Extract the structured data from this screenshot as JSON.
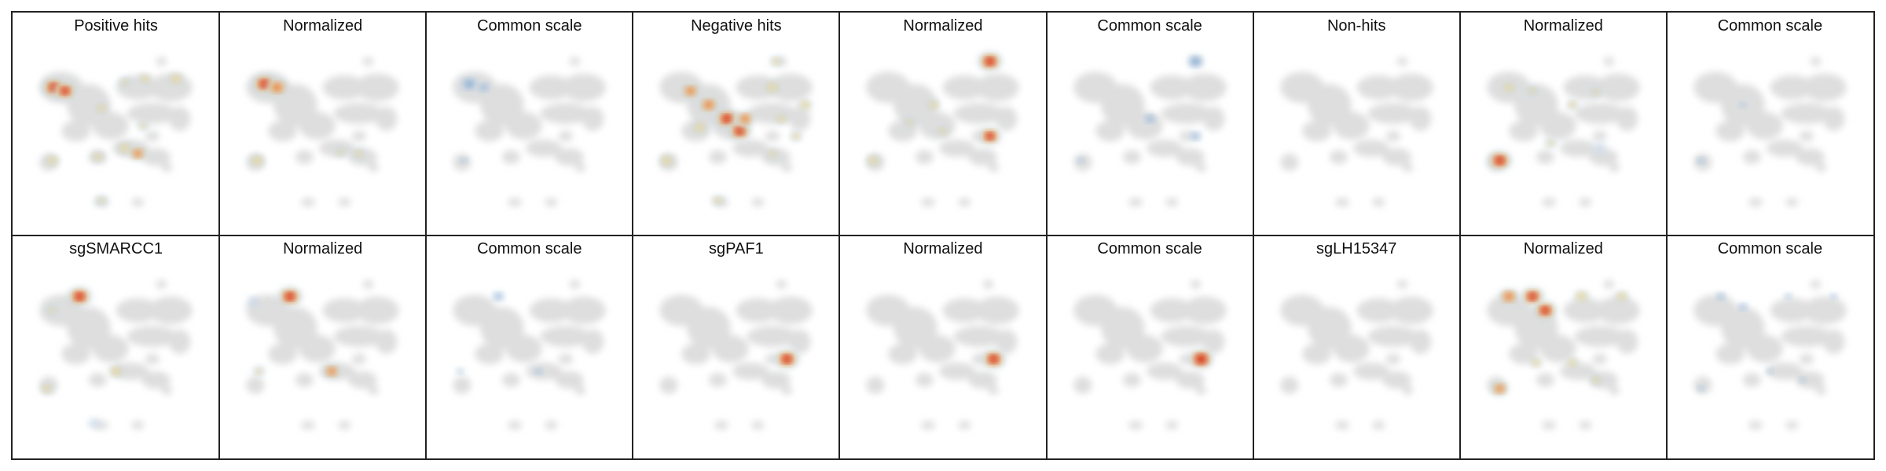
{
  "colors": {
    "background_cells": "#dedede",
    "low_density": "#c5d6e6",
    "mid_density": "#f3d98a",
    "high_density": "#e8622a",
    "peak_density": "#c8171d",
    "common_scale": "#5b8fc6"
  },
  "panels": [
    {
      "title": "Positive hits",
      "mode": "density",
      "spots": [
        [
          0.16,
          0.2,
          1.0
        ],
        [
          0.22,
          0.22,
          0.9
        ],
        [
          0.42,
          0.32,
          0.5
        ],
        [
          0.55,
          0.17,
          0.4
        ],
        [
          0.66,
          0.15,
          0.5
        ],
        [
          0.83,
          0.15,
          0.6
        ],
        [
          0.55,
          0.55,
          0.6
        ],
        [
          0.62,
          0.58,
          0.7
        ],
        [
          0.15,
          0.62,
          0.55
        ],
        [
          0.4,
          0.6,
          0.5
        ],
        [
          0.65,
          0.42,
          0.4
        ],
        [
          0.42,
          0.85,
          0.4
        ]
      ]
    },
    {
      "title": "Normalized",
      "mode": "density",
      "spots": [
        [
          0.18,
          0.18,
          1.0
        ],
        [
          0.25,
          0.2,
          0.85
        ],
        [
          0.6,
          0.57,
          0.4
        ],
        [
          0.14,
          0.62,
          0.6
        ],
        [
          0.7,
          0.58,
          0.45
        ]
      ]
    },
    {
      "title": "Common scale",
      "mode": "common",
      "spots": [
        [
          0.17,
          0.18,
          0.8
        ],
        [
          0.25,
          0.2,
          0.6
        ],
        [
          0.14,
          0.62,
          0.4
        ]
      ]
    },
    {
      "title": "Negative hits",
      "mode": "density",
      "spots": [
        [
          0.25,
          0.22,
          0.75
        ],
        [
          0.35,
          0.3,
          0.8
        ],
        [
          0.45,
          0.38,
          1.0
        ],
        [
          0.52,
          0.45,
          0.95
        ],
        [
          0.55,
          0.38,
          0.75
        ],
        [
          0.3,
          0.43,
          0.6
        ],
        [
          0.7,
          0.2,
          0.6
        ],
        [
          0.75,
          0.38,
          0.5
        ],
        [
          0.88,
          0.3,
          0.55
        ],
        [
          0.83,
          0.48,
          0.45
        ],
        [
          0.72,
          0.05,
          0.45
        ],
        [
          0.12,
          0.62,
          0.6
        ],
        [
          0.4,
          0.85,
          0.45
        ],
        [
          0.7,
          0.58,
          0.45
        ]
      ]
    },
    {
      "title": "Normalized",
      "mode": "density",
      "spots": [
        [
          0.76,
          0.05,
          1.0
        ],
        [
          0.76,
          0.48,
          0.9
        ],
        [
          0.45,
          0.3,
          0.5
        ],
        [
          0.5,
          0.45,
          0.45
        ],
        [
          0.12,
          0.62,
          0.55
        ],
        [
          0.32,
          0.4,
          0.4
        ]
      ]
    },
    {
      "title": "Common scale",
      "mode": "common",
      "spots": [
        [
          0.75,
          0.05,
          0.8
        ],
        [
          0.75,
          0.48,
          0.6
        ],
        [
          0.5,
          0.38,
          0.6
        ],
        [
          0.12,
          0.62,
          0.35
        ]
      ]
    },
    {
      "title": "Non-hits",
      "mode": "density",
      "spots": []
    },
    {
      "title": "Normalized",
      "mode": "density",
      "spots": [
        [
          0.15,
          0.62,
          1.0
        ],
        [
          0.2,
          0.2,
          0.55
        ],
        [
          0.33,
          0.22,
          0.4
        ],
        [
          0.55,
          0.3,
          0.45
        ],
        [
          0.68,
          0.23,
          0.4
        ],
        [
          0.43,
          0.52,
          0.4
        ],
        [
          0.7,
          0.55,
          0.35
        ]
      ]
    },
    {
      "title": "Common scale",
      "mode": "common",
      "spots": [
        [
          0.12,
          0.62,
          0.45
        ],
        [
          0.35,
          0.3,
          0.3
        ]
      ]
    },
    {
      "title": "sgSMARCC1",
      "mode": "density",
      "spots": [
        [
          0.3,
          0.12,
          1.0
        ],
        [
          0.5,
          0.55,
          0.6
        ],
        [
          0.12,
          0.65,
          0.5
        ],
        [
          0.15,
          0.2,
          0.4
        ],
        [
          0.38,
          0.85,
          0.3
        ]
      ]
    },
    {
      "title": "Normalized",
      "mode": "density",
      "spots": [
        [
          0.32,
          0.12,
          1.0
        ],
        [
          0.55,
          0.55,
          0.7
        ],
        [
          0.15,
          0.55,
          0.4
        ],
        [
          0.12,
          0.15,
          0.35
        ]
      ]
    },
    {
      "title": "Common scale",
      "mode": "common",
      "spots": [
        [
          0.33,
          0.12,
          0.6
        ],
        [
          0.55,
          0.55,
          0.45
        ],
        [
          0.12,
          0.55,
          0.35
        ]
      ]
    },
    {
      "title": "sgPAF1",
      "mode": "density",
      "spots": [
        [
          0.78,
          0.48,
          1.0
        ]
      ]
    },
    {
      "title": "Normalized",
      "mode": "density",
      "spots": [
        [
          0.78,
          0.48,
          1.0
        ]
      ]
    },
    {
      "title": "Common scale",
      "mode": "common_hot",
      "spots": [
        [
          0.78,
          0.48,
          1.0
        ]
      ]
    },
    {
      "title": "sgLH15347",
      "mode": "density",
      "spots": []
    },
    {
      "title": "Normalized",
      "mode": "density",
      "spots": [
        [
          0.2,
          0.12,
          0.8
        ],
        [
          0.33,
          0.12,
          0.95
        ],
        [
          0.4,
          0.2,
          0.95
        ],
        [
          0.6,
          0.12,
          0.6
        ],
        [
          0.82,
          0.12,
          0.55
        ],
        [
          0.15,
          0.65,
          0.7
        ],
        [
          0.35,
          0.5,
          0.5
        ],
        [
          0.55,
          0.5,
          0.5
        ],
        [
          0.68,
          0.6,
          0.45
        ]
      ]
    },
    {
      "title": "Common scale",
      "mode": "common",
      "spots": [
        [
          0.23,
          0.12,
          0.5
        ],
        [
          0.35,
          0.18,
          0.5
        ],
        [
          0.6,
          0.12,
          0.4
        ],
        [
          0.85,
          0.12,
          0.4
        ],
        [
          0.12,
          0.65,
          0.4
        ],
        [
          0.5,
          0.55,
          0.35
        ],
        [
          0.68,
          0.6,
          0.35
        ]
      ]
    }
  ]
}
